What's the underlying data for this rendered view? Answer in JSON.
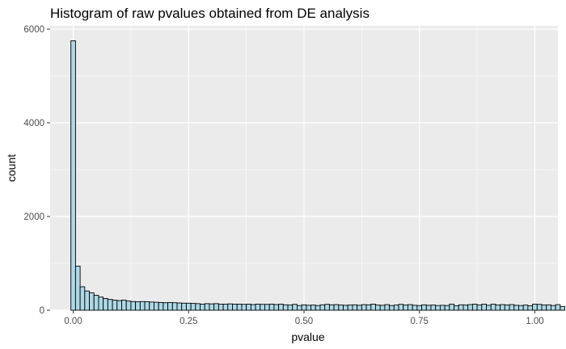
{
  "chart_data": {
    "type": "bar",
    "title": "Histogram of raw pvalues obtained from DE analysis",
    "xlabel": "pvalue",
    "ylabel": "count",
    "xlim": [
      -0.05,
      1.05
    ],
    "ylim": [
      0,
      6000
    ],
    "x_ticks": [
      "0.00",
      "0.25",
      "0.50",
      "0.75",
      "1.00"
    ],
    "x_tick_values": [
      0,
      0.25,
      0.5,
      0.75,
      1.0
    ],
    "y_ticks": [
      "0",
      "2000",
      "4000",
      "6000"
    ],
    "y_tick_values": [
      0,
      2000,
      4000,
      6000
    ],
    "bin_width": 0.01,
    "bin_start": -0.005,
    "values": [
      5750,
      940,
      500,
      410,
      370,
      320,
      280,
      250,
      230,
      215,
      205,
      215,
      195,
      185,
      180,
      185,
      180,
      175,
      170,
      165,
      160,
      165,
      160,
      155,
      150,
      150,
      145,
      140,
      130,
      140,
      135,
      140,
      130,
      130,
      135,
      130,
      130,
      125,
      130,
      120,
      130,
      125,
      125,
      130,
      120,
      130,
      115,
      110,
      125,
      100,
      115,
      105,
      110,
      100,
      115,
      125,
      115,
      120,
      110,
      105,
      110,
      115,
      105,
      120,
      115,
      130,
      110,
      105,
      120,
      100,
      110,
      125,
      110,
      120,
      105,
      100,
      115,
      105,
      110,
      100,
      105,
      100,
      130,
      95,
      115,
      110,
      120,
      130,
      110,
      130,
      105,
      130,
      110,
      120,
      110,
      120,
      105,
      100,
      110,
      95,
      130,
      125,
      110,
      115,
      100,
      120,
      80
    ],
    "bar_fill": "#add8e6",
    "bar_stroke": "#000000",
    "panel_background": "#ebebeb",
    "grid": true,
    "grid_color": "#ffffff"
  }
}
